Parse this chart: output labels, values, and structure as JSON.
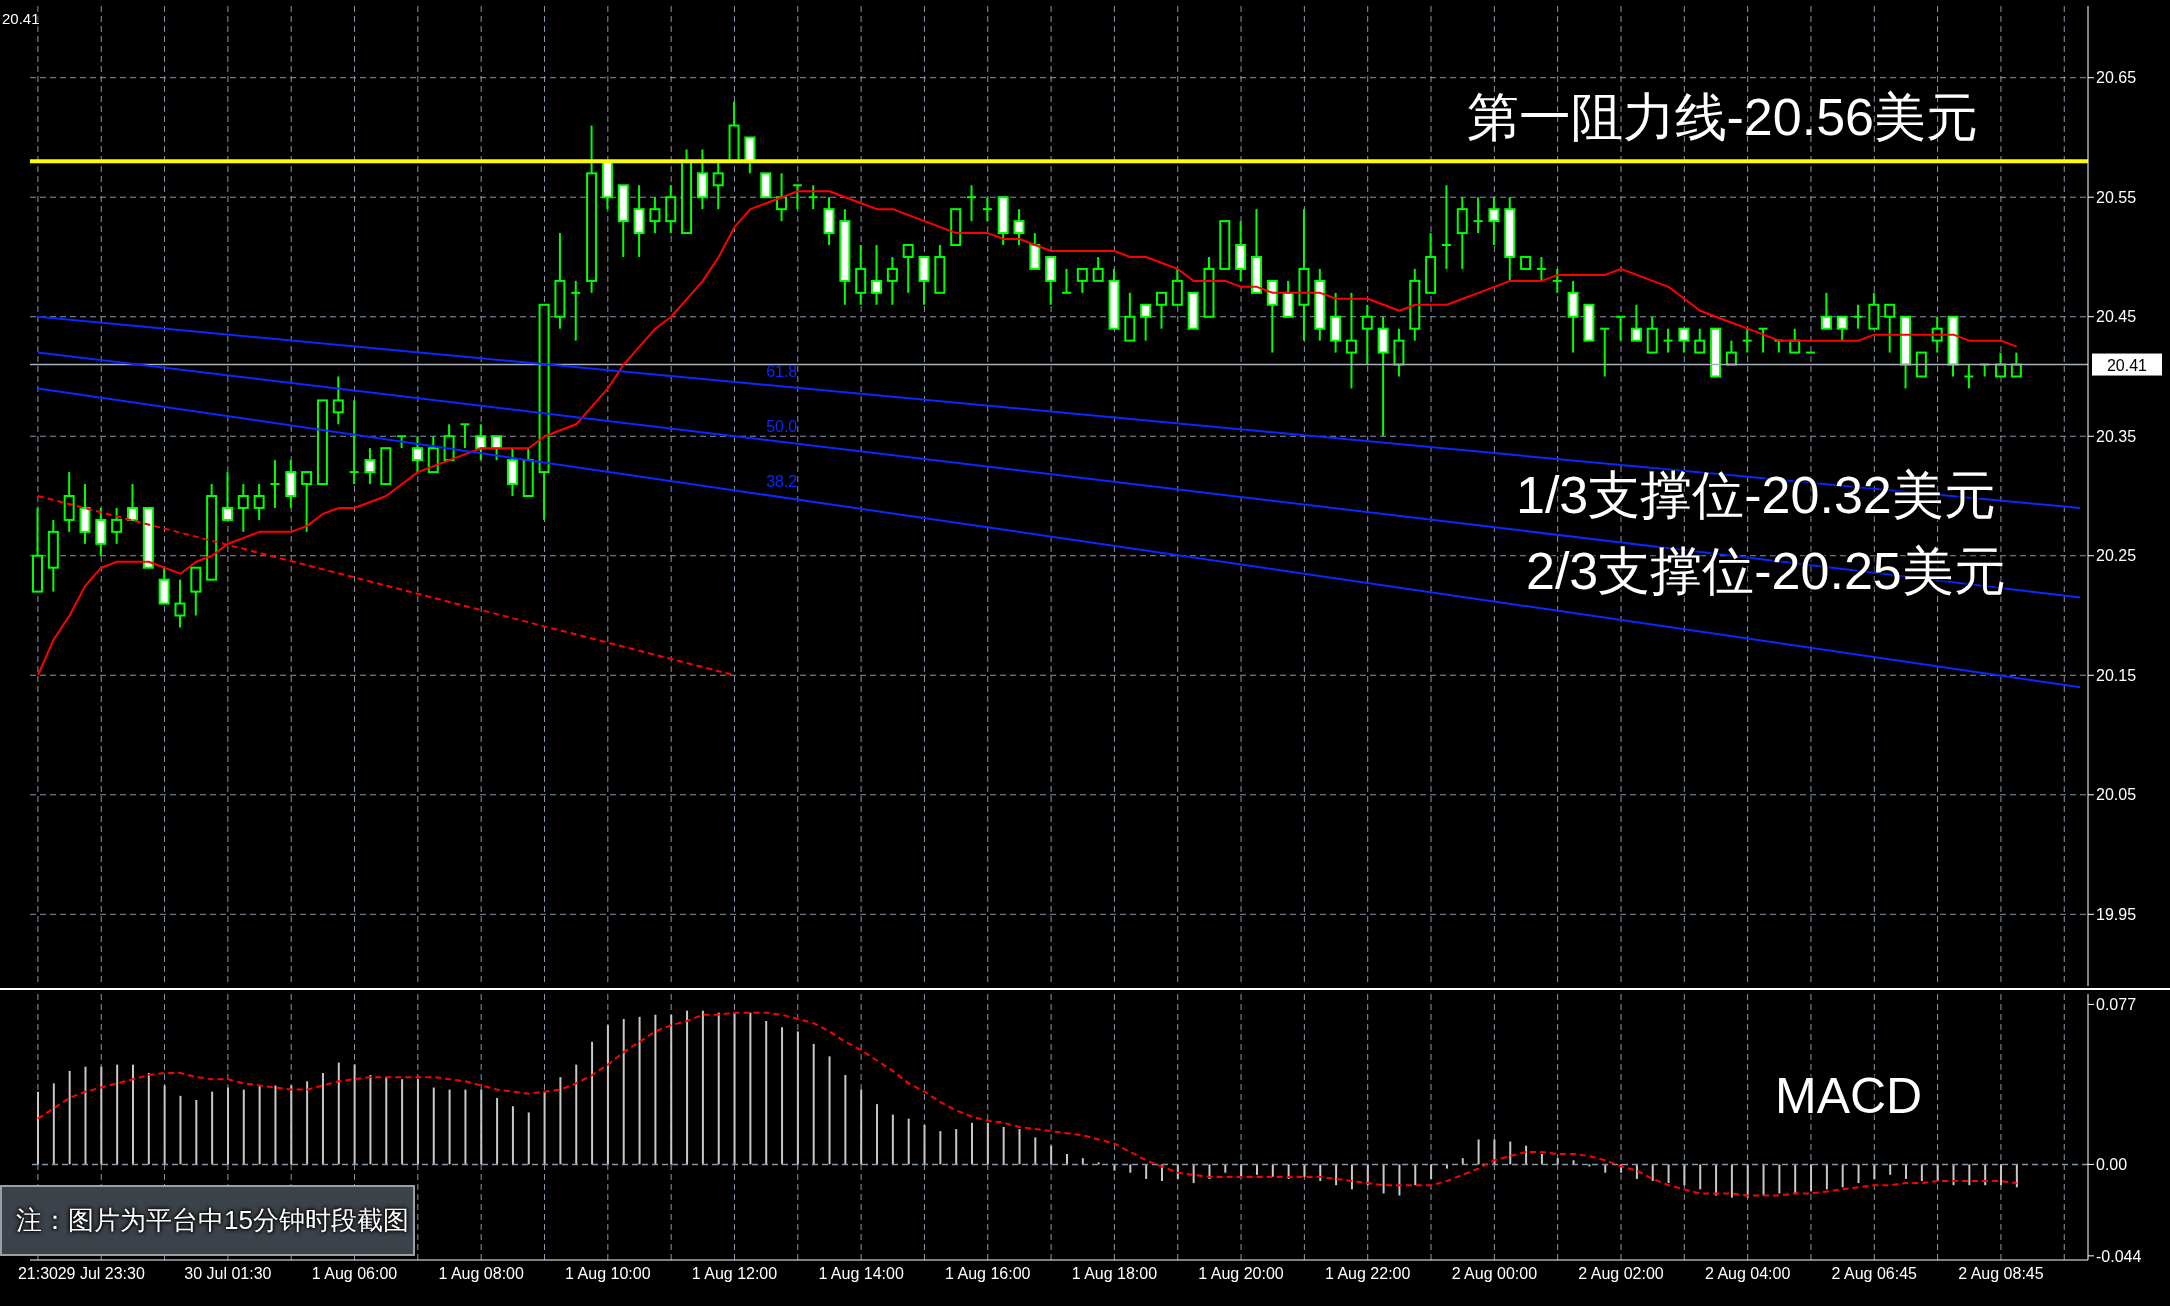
{
  "chart_data": [
    {
      "type": "candlestick",
      "annotations": [
        "20.41",
        "1/3支撑位-20.32美元",
        "2/3支撑位-20.25美元"
      ],
      "categories": [
        null,
        null,
        null,
        null,
        null,
        null,
        null,
        null,
        null,
        null,
        null,
        null,
        null,
        null,
        null,
        null,
        null,
        null,
        null,
        null,
        null,
        null,
        null,
        null,
        null,
        null,
        null,
        null,
        null,
        null,
        null,
        null,
        null,
        null,
        null,
        null,
        null,
        null,
        null,
        null,
        null,
        null,
        null,
        null,
        null,
        null,
        null,
        null,
        null,
        null,
        null,
        null,
        null,
        null,
        null,
        null,
        null,
        null,
        null,
        null,
        null,
        null,
        null,
        null,
        null,
        null,
        null,
        null,
        null,
        null,
        null,
        null,
        null,
        null,
        null,
        null,
        null,
        null,
        null,
        null,
        null,
        null,
        null,
        null,
        null,
        null,
        null,
        null,
        null,
        null,
        null,
        null,
        null,
        null,
        null,
        null,
        null,
        null,
        null,
        null,
        null,
        null,
        null,
        null,
        null,
        null,
        null,
        null,
        null,
        null,
        null,
        null,
        null,
        null,
        null,
        null,
        null,
        null,
        null,
        null,
        null,
        null,
        null,
        null,
        null,
        null,
        null,
        null,
        null,
        null
      ],
      "ylim": [
        19.89,
        20.71
      ],
      "yticks": [
        19.95,
        20.05,
        20.15,
        20.25,
        20.35,
        20.45,
        20.55,
        20.65
      ],
      "grid": true,
      "tick_labels": "y",
      "ref_lines": [
        {
          "axis": "y",
          "value": 20.58,
          "label": "第一阻力线-20.56美元",
          "color": "#ffff00"
        },
        {
          "axis": "y",
          "value": 20.41,
          "label": "20.41",
          "color": "#a8b0b8"
        }
      ],
      "series": [
        {
          "color": "#00ff00",
          "ohlc": [
            [
              20.22,
              20.29,
              20.22,
              20.25
            ],
            [
              20.24,
              20.28,
              20.22,
              20.27
            ],
            [
              20.28,
              20.32,
              20.27,
              20.3
            ],
            [
              20.29,
              20.31,
              20.26,
              20.27
            ],
            [
              20.28,
              20.29,
              20.25,
              20.26
            ],
            [
              20.27,
              20.29,
              20.26,
              20.28
            ],
            [
              20.29,
              20.31,
              20.28,
              20.28
            ],
            [
              20.29,
              20.29,
              20.24,
              20.24
            ],
            [
              20.23,
              20.24,
              20.21,
              20.21
            ],
            [
              20.2,
              20.23,
              20.19,
              20.21
            ],
            [
              20.22,
              20.24,
              20.2,
              20.24
            ],
            [
              20.23,
              20.31,
              20.23,
              20.3
            ],
            [
              20.29,
              20.32,
              20.28,
              20.28
            ],
            [
              20.29,
              20.31,
              20.27,
              20.3
            ],
            [
              20.29,
              20.31,
              20.28,
              20.3
            ],
            [
              20.31,
              20.33,
              20.29,
              20.31
            ],
            [
              20.32,
              20.33,
              20.29,
              20.3
            ],
            [
              20.31,
              20.32,
              20.27,
              20.32
            ],
            [
              20.31,
              20.38,
              20.31,
              20.38
            ],
            [
              20.37,
              20.4,
              20.36,
              20.38
            ],
            [
              20.32,
              20.38,
              20.31,
              20.32
            ],
            [
              20.33,
              20.34,
              20.31,
              20.32
            ],
            [
              20.31,
              20.34,
              20.31,
              20.34
            ],
            [
              20.35,
              20.35,
              20.34,
              20.35
            ],
            [
              20.34,
              20.35,
              20.32,
              20.33
            ],
            [
              20.32,
              20.35,
              20.32,
              20.34
            ],
            [
              20.33,
              20.36,
              20.33,
              20.35
            ],
            [
              20.36,
              20.36,
              20.34,
              20.36
            ],
            [
              20.35,
              20.36,
              20.33,
              20.34
            ],
            [
              20.35,
              20.35,
              20.33,
              20.34
            ],
            [
              20.33,
              20.34,
              20.3,
              20.31
            ],
            [
              20.3,
              20.34,
              20.3,
              20.33
            ],
            [
              20.32,
              20.46,
              20.28,
              20.46
            ],
            [
              20.45,
              20.52,
              20.44,
              20.48
            ],
            [
              20.47,
              20.48,
              20.43,
              20.47
            ],
            [
              20.48,
              20.61,
              20.47,
              20.57
            ],
            [
              20.58,
              20.58,
              20.54,
              20.55
            ],
            [
              20.56,
              20.56,
              20.5,
              20.53
            ],
            [
              20.54,
              20.56,
              20.5,
              20.52
            ],
            [
              20.53,
              20.55,
              20.52,
              20.54
            ],
            [
              20.53,
              20.56,
              20.52,
              20.55
            ],
            [
              20.52,
              20.59,
              20.52,
              20.58
            ],
            [
              20.57,
              20.59,
              20.54,
              20.55
            ],
            [
              20.56,
              20.58,
              20.54,
              20.57
            ],
            [
              20.58,
              20.63,
              20.58,
              20.61
            ],
            [
              20.6,
              20.6,
              20.57,
              20.58
            ],
            [
              20.57,
              20.57,
              20.55,
              20.55
            ],
            [
              20.54,
              20.57,
              20.53,
              20.55
            ],
            [
              20.56,
              20.56,
              20.54,
              20.56
            ],
            [
              20.55,
              20.56,
              20.54,
              20.55
            ],
            [
              20.54,
              20.55,
              20.51,
              20.52
            ],
            [
              20.53,
              20.54,
              20.46,
              20.48
            ],
            [
              20.47,
              20.51,
              20.46,
              20.49
            ],
            [
              20.48,
              20.51,
              20.46,
              20.47
            ],
            [
              20.48,
              20.5,
              20.46,
              20.49
            ],
            [
              20.5,
              20.51,
              20.47,
              20.51
            ],
            [
              20.5,
              20.5,
              20.46,
              20.48
            ],
            [
              20.47,
              20.51,
              20.47,
              20.5
            ],
            [
              20.51,
              20.54,
              20.51,
              20.54
            ],
            [
              20.55,
              20.56,
              20.53,
              20.55
            ],
            [
              20.54,
              20.55,
              20.53,
              20.54
            ],
            [
              20.55,
              20.55,
              20.51,
              20.52
            ],
            [
              20.53,
              20.54,
              20.51,
              20.52
            ],
            [
              20.51,
              20.52,
              20.49,
              20.49
            ],
            [
              20.5,
              20.5,
              20.46,
              20.48
            ],
            [
              20.47,
              20.49,
              20.47,
              20.47
            ],
            [
              20.48,
              20.49,
              20.47,
              20.49
            ],
            [
              20.48,
              20.5,
              20.48,
              20.49
            ],
            [
              20.48,
              20.49,
              20.44,
              20.44
            ],
            [
              20.43,
              20.47,
              20.43,
              20.45
            ],
            [
              20.46,
              20.46,
              20.43,
              20.45
            ],
            [
              20.46,
              20.47,
              20.44,
              20.47
            ],
            [
              20.46,
              20.49,
              20.46,
              20.48
            ],
            [
              20.47,
              20.47,
              20.44,
              20.44
            ],
            [
              20.45,
              20.5,
              20.45,
              20.49
            ],
            [
              20.49,
              20.53,
              20.49,
              20.53
            ],
            [
              20.51,
              20.53,
              20.48,
              20.49
            ],
            [
              20.5,
              20.54,
              20.47,
              20.47
            ],
            [
              20.48,
              20.48,
              20.42,
              20.46
            ],
            [
              20.47,
              20.48,
              20.45,
              20.45
            ],
            [
              20.46,
              20.54,
              20.43,
              20.49
            ],
            [
              20.48,
              20.49,
              20.43,
              20.44
            ],
            [
              20.45,
              20.47,
              20.42,
              20.43
            ],
            [
              20.42,
              20.47,
              20.39,
              20.43
            ],
            [
              20.44,
              20.46,
              20.41,
              20.45
            ],
            [
              20.44,
              20.45,
              20.35,
              20.42
            ],
            [
              20.41,
              20.44,
              20.4,
              20.43
            ],
            [
              20.44,
              20.49,
              20.43,
              20.48
            ],
            [
              20.47,
              20.52,
              20.47,
              20.5
            ],
            [
              20.51,
              20.56,
              20.49,
              20.51
            ],
            [
              20.52,
              20.55,
              20.49,
              20.54
            ],
            [
              20.53,
              20.55,
              20.52,
              20.53
            ],
            [
              20.54,
              20.55,
              20.51,
              20.53
            ],
            [
              20.54,
              20.55,
              20.48,
              20.5
            ],
            [
              20.49,
              20.5,
              20.49,
              20.5
            ],
            [
              20.49,
              20.5,
              20.48,
              20.49
            ],
            [
              20.48,
              20.49,
              20.47,
              20.48
            ],
            [
              20.47,
              20.48,
              20.42,
              20.45
            ],
            [
              20.46,
              20.46,
              20.43,
              20.43
            ],
            [
              20.44,
              20.44,
              20.4,
              20.44
            ],
            [
              20.45,
              20.45,
              20.43,
              20.45
            ],
            [
              20.44,
              20.46,
              20.43,
              20.43
            ],
            [
              20.42,
              20.45,
              20.42,
              20.44
            ],
            [
              20.43,
              20.44,
              20.42,
              20.43
            ],
            [
              20.44,
              20.44,
              20.42,
              20.43
            ],
            [
              20.42,
              20.44,
              20.42,
              20.43
            ],
            [
              20.44,
              20.44,
              20.4,
              20.4
            ],
            [
              20.41,
              20.43,
              20.41,
              20.42
            ],
            [
              20.43,
              20.44,
              20.42,
              20.43
            ],
            [
              20.44,
              20.44,
              20.42,
              20.44
            ],
            [
              20.43,
              20.43,
              20.42,
              20.43
            ],
            [
              20.42,
              20.44,
              20.42,
              20.43
            ],
            [
              20.42,
              20.42,
              20.42,
              20.42
            ],
            [
              20.45,
              20.47,
              20.44,
              20.44
            ],
            [
              20.45,
              20.45,
              20.43,
              20.44
            ],
            [
              20.45,
              20.46,
              20.44,
              20.45
            ],
            [
              20.44,
              20.47,
              20.44,
              20.46
            ],
            [
              20.45,
              20.46,
              20.42,
              20.46
            ],
            [
              20.45,
              20.45,
              20.39,
              20.41
            ],
            [
              20.4,
              20.42,
              20.4,
              20.42
            ],
            [
              20.43,
              20.45,
              20.42,
              20.44
            ],
            [
              20.45,
              20.45,
              20.4,
              20.41
            ],
            [
              20.4,
              20.41,
              20.39,
              20.4
            ],
            [
              20.41,
              20.41,
              20.4,
              20.41
            ],
            [
              20.4,
              20.42,
              20.4,
              20.41
            ],
            [
              20.4,
              20.42,
              20.4,
              20.41
            ],
            null,
            null,
            null,
            null
          ]
        },
        {
          "type": "line",
          "color": "#ff0000",
          "values": [
            20.15,
            20.18,
            20.2,
            20.225,
            20.24,
            20.245,
            20.245,
            20.245,
            20.24,
            20.235,
            20.245,
            20.25,
            20.26,
            20.265,
            20.27,
            20.27,
            20.27,
            20.275,
            20.285,
            20.29,
            20.29,
            20.295,
            20.3,
            20.31,
            20.32,
            20.325,
            20.33,
            20.335,
            20.34,
            20.34,
            20.34,
            20.34,
            20.35,
            20.355,
            20.36,
            20.375,
            20.39,
            20.41,
            20.425,
            20.44,
            20.45,
            20.465,
            20.48,
            20.5,
            20.525,
            20.54,
            20.545,
            20.55,
            20.555,
            20.555,
            20.555,
            20.55,
            20.545,
            20.54,
            20.54,
            20.535,
            20.53,
            20.525,
            20.52,
            20.52,
            20.52,
            20.515,
            20.515,
            20.51,
            20.505,
            20.505,
            20.505,
            20.505,
            20.505,
            20.5,
            20.5,
            20.495,
            20.49,
            20.48,
            20.48,
            20.48,
            20.475,
            20.475,
            20.47,
            20.47,
            20.47,
            20.47,
            20.465,
            20.465,
            20.465,
            20.46,
            20.455,
            20.46,
            20.46,
            20.46,
            20.465,
            20.47,
            20.475,
            20.48,
            20.48,
            20.48,
            20.485,
            20.485,
            20.485,
            20.485,
            20.49,
            20.485,
            20.48,
            20.475,
            20.465,
            20.455,
            20.45,
            20.445,
            20.44,
            20.435,
            20.43,
            20.43,
            20.43,
            20.43,
            20.43,
            20.43,
            20.435,
            20.435,
            20.435,
            20.435,
            20.435,
            20.435,
            20.43,
            20.43,
            20.43,
            20.425,
            null,
            null,
            null,
            null
          ]
        },
        {
          "type": "line",
          "color": "#ff0000",
          "line_style": "dashed",
          "values": [
            20.3,
            null,
            null,
            null,
            null,
            null,
            null,
            null,
            null,
            null,
            null,
            null,
            null,
            null,
            null,
            null,
            null,
            null,
            null,
            null,
            null,
            null,
            null,
            null,
            null,
            null,
            null,
            null,
            null,
            null,
            null,
            null,
            null,
            null,
            null,
            null,
            null,
            null,
            null,
            null,
            null,
            null,
            null,
            null,
            20.15,
            null,
            null,
            null,
            null,
            null,
            null,
            null,
            null,
            null,
            null,
            null,
            null,
            null,
            null,
            null,
            null,
            null,
            null,
            null,
            null,
            null,
            null,
            null,
            null,
            null,
            null,
            null,
            null,
            null,
            null,
            null,
            null,
            null,
            null,
            null,
            null,
            null,
            null,
            null,
            null,
            null,
            null,
            null,
            null,
            null,
            null,
            null,
            null,
            null,
            null,
            null,
            null,
            null,
            null,
            null,
            null,
            null,
            null,
            null,
            null,
            null,
            null,
            null,
            null,
            null,
            null,
            null,
            null,
            null,
            null,
            null,
            null,
            null,
            null,
            null,
            null,
            null,
            null,
            null,
            null,
            null,
            null,
            null,
            null,
            null
          ]
        },
        {
          "type": "line",
          "name": "61.8",
          "color": "#0a28ff",
          "values": [
            20.45,
            null,
            null,
            null,
            null,
            null,
            null,
            null,
            null,
            null,
            null,
            null,
            null,
            null,
            null,
            null,
            null,
            null,
            null,
            null,
            null,
            null,
            null,
            null,
            null,
            null,
            null,
            null,
            null,
            null,
            null,
            null,
            null,
            null,
            null,
            null,
            null,
            null,
            null,
            null,
            null,
            null,
            null,
            null,
            null,
            null,
            null,
            null,
            null,
            null,
            null,
            null,
            null,
            null,
            null,
            null,
            null,
            null,
            null,
            null,
            null,
            null,
            null,
            null,
            null,
            null,
            null,
            null,
            null,
            null,
            null,
            null,
            null,
            null,
            null,
            null,
            null,
            null,
            null,
            null,
            null,
            null,
            null,
            null,
            null,
            null,
            null,
            null,
            null,
            null,
            null,
            null,
            null,
            null,
            null,
            null,
            null,
            null,
            null,
            null,
            null,
            null,
            null,
            null,
            null,
            null,
            null,
            null,
            null,
            null,
            null,
            null,
            null,
            null,
            null,
            null,
            null,
            null,
            null,
            null,
            null,
            null,
            null,
            null,
            null,
            null,
            null,
            null,
            null,
            20.29
          ]
        },
        {
          "type": "line",
          "name": "50.0",
          "color": "#0a28ff",
          "values": [
            20.42,
            null,
            null,
            null,
            null,
            null,
            null,
            null,
            null,
            null,
            null,
            null,
            null,
            null,
            null,
            null,
            null,
            null,
            null,
            null,
            null,
            null,
            null,
            null,
            null,
            null,
            null,
            null,
            null,
            null,
            null,
            null,
            null,
            null,
            null,
            null,
            null,
            null,
            null,
            null,
            null,
            null,
            null,
            null,
            null,
            null,
            null,
            null,
            null,
            null,
            null,
            null,
            null,
            null,
            null,
            null,
            null,
            null,
            null,
            null,
            null,
            null,
            null,
            null,
            null,
            null,
            null,
            null,
            null,
            null,
            null,
            null,
            null,
            null,
            null,
            null,
            null,
            null,
            null,
            null,
            null,
            null,
            null,
            null,
            null,
            null,
            null,
            null,
            null,
            null,
            null,
            null,
            null,
            null,
            null,
            null,
            null,
            null,
            null,
            null,
            null,
            null,
            null,
            null,
            null,
            null,
            null,
            null,
            null,
            null,
            null,
            null,
            null,
            null,
            null,
            null,
            null,
            null,
            null,
            null,
            null,
            null,
            null,
            null,
            null,
            null,
            null,
            null,
            null,
            20.215
          ]
        },
        {
          "type": "line",
          "name": "38.2",
          "color": "#0a28ff",
          "values": [
            20.39,
            null,
            null,
            null,
            null,
            null,
            null,
            null,
            null,
            null,
            null,
            null,
            null,
            null,
            null,
            null,
            null,
            null,
            null,
            null,
            null,
            null,
            null,
            null,
            null,
            null,
            null,
            null,
            null,
            null,
            null,
            null,
            null,
            null,
            null,
            null,
            null,
            null,
            null,
            null,
            null,
            null,
            null,
            null,
            null,
            null,
            null,
            null,
            null,
            null,
            null,
            null,
            null,
            null,
            null,
            null,
            null,
            null,
            null,
            null,
            null,
            null,
            null,
            null,
            null,
            null,
            null,
            null,
            null,
            null,
            null,
            null,
            null,
            null,
            null,
            null,
            null,
            null,
            null,
            null,
            null,
            null,
            null,
            null,
            null,
            null,
            null,
            null,
            null,
            null,
            null,
            null,
            null,
            null,
            null,
            null,
            null,
            null,
            null,
            null,
            null,
            null,
            null,
            null,
            null,
            null,
            null,
            null,
            null,
            null,
            null,
            null,
            null,
            null,
            null,
            null,
            null,
            null,
            null,
            null,
            null,
            null,
            null,
            null,
            null,
            null,
            null,
            null,
            null,
            20.14
          ]
        }
      ]
    },
    {
      "type": "bar",
      "annotations": [
        "MACD",
        "注：图片为平台中15分钟时段截图"
      ],
      "categories": [
        "21:30",
        null,
        null,
        null,
        "29 Jul 23:30",
        null,
        null,
        null,
        null,
        null,
        null,
        null,
        "30 Jul 01:30",
        null,
        null,
        null,
        null,
        null,
        null,
        null,
        "1 Aug 06:00",
        null,
        null,
        null,
        null,
        null,
        null,
        null,
        "1 Aug 08:00",
        null,
        null,
        null,
        null,
        null,
        null,
        null,
        "1 Aug 10:00",
        null,
        null,
        null,
        null,
        null,
        null,
        null,
        "1 Aug 12:00",
        null,
        null,
        null,
        null,
        null,
        null,
        null,
        "1 Aug 14:00",
        null,
        null,
        null,
        null,
        null,
        null,
        null,
        "1 Aug 16:00",
        null,
        null,
        null,
        null,
        null,
        null,
        null,
        "1 Aug 18:00",
        null,
        null,
        null,
        null,
        null,
        null,
        null,
        "1 Aug 20:00",
        null,
        null,
        null,
        null,
        null,
        null,
        null,
        "1 Aug 22:00",
        null,
        null,
        null,
        null,
        null,
        null,
        null,
        "2 Aug 00:00",
        null,
        null,
        null,
        null,
        null,
        null,
        null,
        "2 Aug 02:00",
        null,
        null,
        null,
        null,
        null,
        null,
        null,
        "2 Aug 04:00",
        null,
        null,
        null,
        null,
        null,
        null,
        null,
        "2 Aug 06:45",
        null,
        null,
        null,
        null,
        null,
        null,
        null,
        "2 Aug 08:45",
        null,
        null,
        null,
        null,
        null
      ],
      "ylim": [
        -0.046,
        0.082
      ],
      "yticks": [
        0.077,
        {
          "value": 0,
          "label": "0.00"
        },
        -0.044
      ],
      "grid": "x",
      "ref_lines": [
        {
          "axis": "y",
          "value": 0,
          "color": "#8896a8",
          "line_style": "dashed"
        }
      ],
      "series": [
        {
          "color": "#c8c8c8",
          "values": [
            0.035,
            0.039,
            0.045,
            0.047,
            0.047,
            0.048,
            0.048,
            0.044,
            0.038,
            0.033,
            0.031,
            0.035,
            0.037,
            0.036,
            0.038,
            0.038,
            0.038,
            0.04,
            0.044,
            0.049,
            0.048,
            0.043,
            0.042,
            0.041,
            0.041,
            0.037,
            0.036,
            0.036,
            0.036,
            0.032,
            0.028,
            0.025,
            0.035,
            0.042,
            0.048,
            0.059,
            0.067,
            0.07,
            0.071,
            0.072,
            0.072,
            0.074,
            0.074,
            0.073,
            0.073,
            0.073,
            0.069,
            0.066,
            0.064,
            0.058,
            0.052,
            0.043,
            0.036,
            0.029,
            0.024,
            0.022,
            0.019,
            0.016,
            0.017,
            0.02,
            0.02,
            0.018,
            0.017,
            0.013,
            0.009,
            0.005,
            0.003,
            0.001,
            -0.003,
            -0.004,
            -0.007,
            -0.008,
            -0.007,
            -0.009,
            -0.007,
            -0.004,
            -0.006,
            -0.005,
            -0.006,
            -0.007,
            -0.006,
            -0.008,
            -0.01,
            -0.012,
            -0.01,
            -0.014,
            -0.015,
            -0.01,
            -0.007,
            -0.002,
            0.003,
            0.012,
            0.012,
            0.011,
            0.009,
            0.005,
            0.003,
            0.002,
            -0.001,
            -0.004,
            -0.004,
            -0.007,
            -0.008,
            -0.009,
            -0.01,
            -0.012,
            -0.015,
            -0.016,
            -0.016,
            -0.015,
            -0.014,
            -0.014,
            -0.013,
            -0.012,
            -0.011,
            -0.009,
            -0.007,
            -0.005,
            -0.007,
            -0.008,
            -0.008,
            -0.01,
            -0.01,
            -0.01,
            -0.01,
            -0.011,
            null,
            null,
            null,
            null
          ]
        },
        {
          "type": "line",
          "color": "#ff0000",
          "line_style": "dashed",
          "values": [
            0.022,
            0.027,
            0.032,
            0.035,
            0.037,
            0.039,
            0.041,
            0.043,
            0.044,
            0.044,
            0.042,
            0.041,
            0.041,
            0.039,
            0.038,
            0.037,
            0.036,
            0.036,
            0.038,
            0.04,
            0.041,
            0.042,
            0.042,
            0.042,
            0.042,
            0.042,
            0.041,
            0.04,
            0.038,
            0.036,
            0.035,
            0.034,
            0.035,
            0.036,
            0.039,
            0.043,
            0.048,
            0.054,
            0.059,
            0.064,
            0.067,
            0.069,
            0.072,
            0.072,
            0.073,
            0.073,
            0.073,
            0.072,
            0.07,
            0.068,
            0.064,
            0.059,
            0.055,
            0.05,
            0.045,
            0.039,
            0.035,
            0.03,
            0.026,
            0.023,
            0.021,
            0.02,
            0.018,
            0.017,
            0.016,
            0.015,
            0.014,
            0.012,
            0.01,
            0.006,
            0.002,
            -0.001,
            -0.004,
            -0.005,
            -0.006,
            -0.006,
            -0.006,
            -0.006,
            -0.006,
            -0.006,
            -0.006,
            -0.006,
            -0.007,
            -0.008,
            -0.009,
            -0.01,
            -0.01,
            -0.01,
            -0.01,
            -0.008,
            -0.005,
            -0.002,
            0.002,
            0.004,
            0.006,
            0.006,
            0.005,
            0.005,
            0.004,
            0.002,
            -0.001,
            -0.003,
            -0.007,
            -0.01,
            -0.012,
            -0.014,
            -0.014,
            -0.014,
            -0.015,
            -0.015,
            -0.015,
            -0.014,
            -0.014,
            -0.013,
            -0.012,
            -0.011,
            -0.01,
            -0.01,
            -0.009,
            -0.009,
            -0.008,
            -0.008,
            -0.008,
            -0.008,
            -0.008,
            -0.009,
            null,
            null,
            null,
            null
          ]
        }
      ]
    }
  ]
}
